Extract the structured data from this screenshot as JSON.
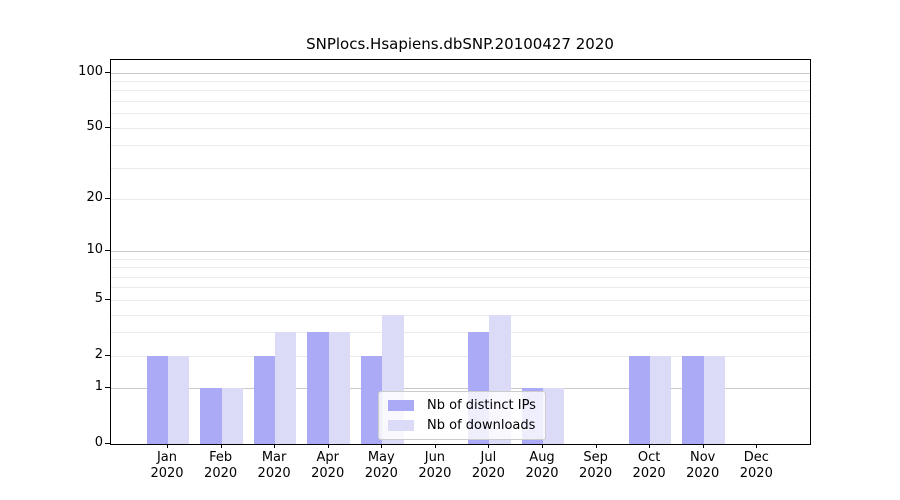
{
  "chart_data": {
    "type": "bar",
    "title": "SNPlocs.Hsapiens.dbSNP.20100427 2020",
    "categories": [
      "Jan",
      "Feb",
      "Mar",
      "Apr",
      "May",
      "Jun",
      "Jul",
      "Aug",
      "Sep",
      "Oct",
      "Nov",
      "Dec"
    ],
    "x_tick_year": "2020",
    "series": [
      {
        "name": "Nb of distinct IPs",
        "color": "#aaaaf6",
        "values": [
          2,
          1,
          2,
          3,
          2,
          0,
          3,
          1,
          0,
          2,
          2,
          0
        ]
      },
      {
        "name": "Nb of downloads",
        "color": "#dbdbf8",
        "values": [
          2,
          1,
          3,
          3,
          4,
          0,
          4,
          1,
          0,
          2,
          2,
          0
        ]
      }
    ],
    "xlabel": "",
    "ylabel": "",
    "yscale": "log1p",
    "ylim": [
      0,
      110
    ],
    "yticks": [
      0,
      1,
      2,
      5,
      10,
      20,
      50,
      100
    ],
    "gridlines": {
      "major": [
        1,
        10,
        100
      ],
      "minor": [
        2,
        3,
        4,
        5,
        6,
        7,
        8,
        9,
        20,
        30,
        40,
        50,
        60,
        70,
        80,
        90
      ],
      "major_color": "#c9c9c9",
      "minor_color": "#ebebeb"
    },
    "grid": "on",
    "legend": {
      "position": "inside-bottom-center",
      "entries": [
        "Nb of distinct IPs",
        "Nb of downloads"
      ]
    }
  }
}
